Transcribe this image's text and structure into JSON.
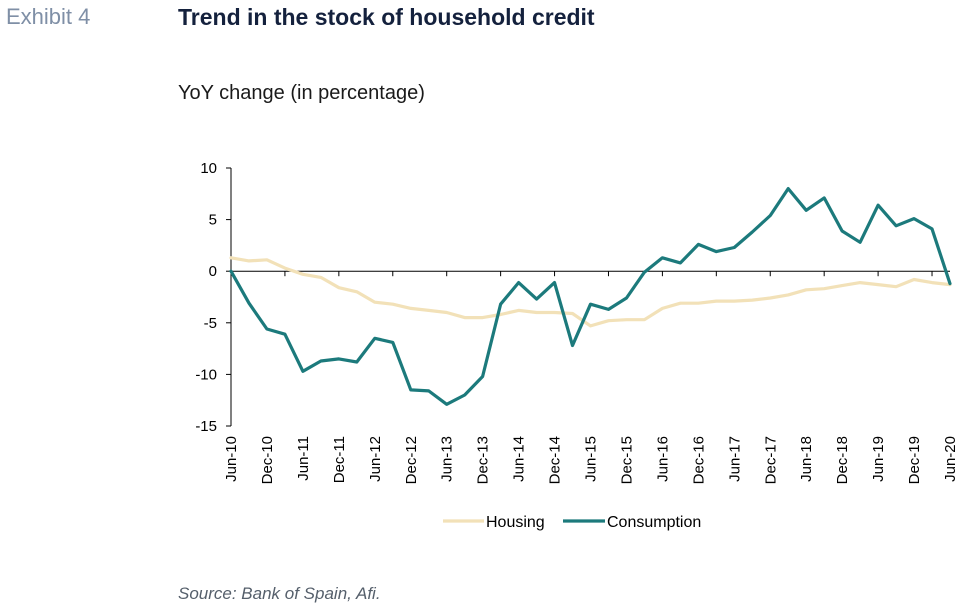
{
  "header": {
    "exhibit": "Exhibit 4",
    "title": "Trend in the stock of household credit",
    "subtitle": "YoY change (in percentage)"
  },
  "footer": {
    "source": "Source: Bank of Spain, Afi."
  },
  "colors": {
    "housing": "#f2e1b8",
    "consumption": "#1c7a7c",
    "axis": "#000000"
  },
  "chart_data": {
    "type": "line",
    "title": "Trend in the stock of household credit",
    "subtitle": "YoY change (in percentage)",
    "ylim": [
      -15,
      10
    ],
    "yticks": [
      10,
      5,
      0,
      -5,
      -10,
      -15
    ],
    "xtick_labels": [
      "Jun-10",
      "Dec-10",
      "Jun-11",
      "Dec-11",
      "Jun-12",
      "Dec-12",
      "Jun-13",
      "Dec-13",
      "Jun-14",
      "Dec-14",
      "Jun-15",
      "Dec-15",
      "Jun-16",
      "Dec-16",
      "Jun-17",
      "Dec-17",
      "Jun-18",
      "Dec-18",
      "Jun-19",
      "Dec-19",
      "Jun-20"
    ],
    "grid": false,
    "legend_position": "bottom",
    "series": [
      {
        "name": "Housing",
        "values": [
          1.3,
          1.0,
          1.1,
          0.3,
          -0.3,
          -0.6,
          -1.6,
          -2.0,
          -3.0,
          -3.2,
          -3.6,
          -3.8,
          -4.0,
          -4.5,
          -4.5,
          -4.2,
          -3.8,
          -4.0,
          -4.0,
          -4.1,
          -5.3,
          -4.8,
          -4.7,
          -4.7,
          -3.6,
          -3.1,
          -3.1,
          -2.9,
          -2.9,
          -2.8,
          -2.6,
          -2.3,
          -1.8,
          -1.7,
          -1.4,
          -1.1,
          -1.3,
          -1.5,
          -0.8,
          -1.1,
          -1.3
        ]
      },
      {
        "name": "Consumption",
        "values": [
          0.0,
          -3.1,
          -5.6,
          -6.1,
          -9.7,
          -8.7,
          -8.5,
          -8.8,
          -6.5,
          -6.9,
          -11.5,
          -11.6,
          -12.9,
          -12.0,
          -10.2,
          -3.2,
          -1.1,
          -2.7,
          -1.1,
          -7.2,
          -3.2,
          -3.7,
          -2.6,
          -0.1,
          1.3,
          0.8,
          2.6,
          1.9,
          2.3,
          3.8,
          5.4,
          8.0,
          5.9,
          7.1,
          3.9,
          2.8,
          6.4,
          4.4,
          5.1,
          4.1,
          -1.2
        ]
      }
    ]
  }
}
